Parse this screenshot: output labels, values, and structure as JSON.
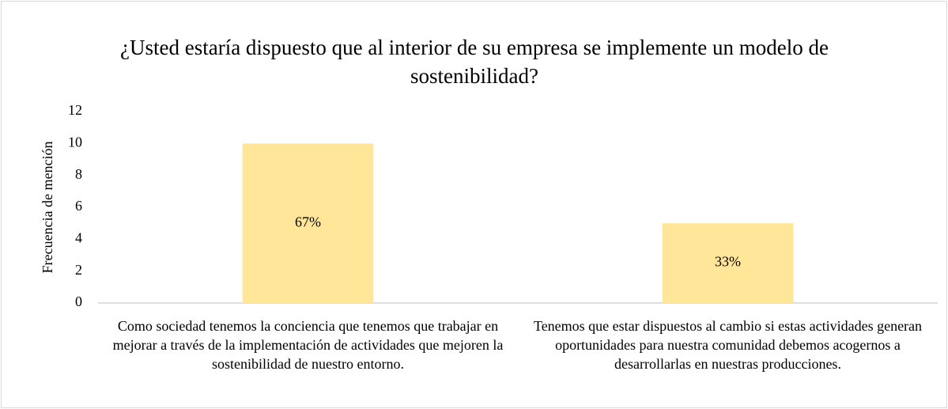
{
  "chart_data": {
    "type": "bar",
    "title": "¿Usted estaría dispuesto que al interior de su empresa se implemente un modelo de sostenibilidad?",
    "ylabel": "Frecuencia de mención",
    "categories": [
      "Como sociedad tenemos la conciencia que tenemos que trabajar en mejorar a través de la implementación de actividades que mejoren la sostenibilidad de nuestro entorno.",
      "Tenemos que estar dispuestos al cambio si estas actividades generan oportunidades para nuestra comunidad debemos acogernos a desarrollarlas en nuestras producciones."
    ],
    "values": [
      10,
      5
    ],
    "percent_labels": [
      "67%",
      "33%"
    ],
    "color": "#ffe699",
    "ylim": [
      0,
      12
    ],
    "yticks": [
      0,
      2,
      4,
      6,
      8,
      10,
      12
    ],
    "grid": false
  }
}
